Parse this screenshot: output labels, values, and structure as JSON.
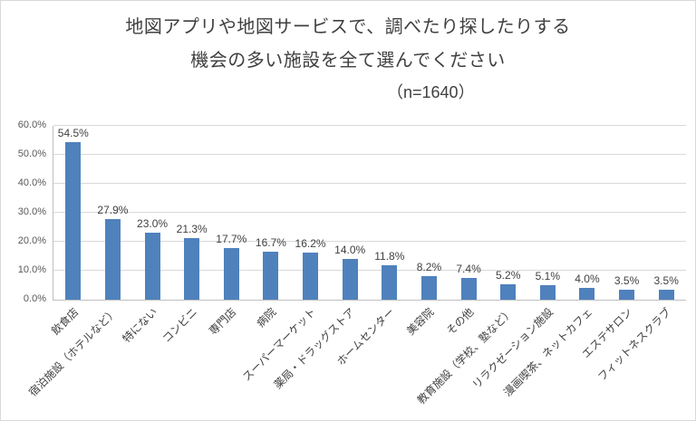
{
  "chart_data": {
    "type": "bar",
    "title_line1": "地図アプリや地図サービスで、調べたり探したりする",
    "title_line2": "機会の多い施設を全て選んでください",
    "n_label": "（n=1640）",
    "categories": [
      "飲食店",
      "宿泊施設（ホテルなど）",
      "特にない",
      "コンビニ",
      "専門店",
      "病院",
      "スーパーマーケット",
      "薬局・ドラッグストア",
      "ホームセンター",
      "美容院",
      "その他",
      "教育施設（学校、塾など）",
      "リラクゼーション施設",
      "漫画喫茶、ネットカフェ",
      "エステサロン",
      "フィットネスクラブ"
    ],
    "values": [
      54.5,
      27.9,
      23.0,
      21.3,
      17.7,
      16.7,
      16.2,
      14.0,
      11.8,
      8.2,
      7.4,
      5.2,
      5.1,
      4.0,
      3.5,
      3.5
    ],
    "ylim": [
      0,
      60
    ],
    "ytick_step": 10,
    "ytick_format_suffix": "%",
    "bar_color": "#4f81bd",
    "grid": true,
    "legend_position": "none",
    "xlabel": "",
    "ylabel": ""
  }
}
